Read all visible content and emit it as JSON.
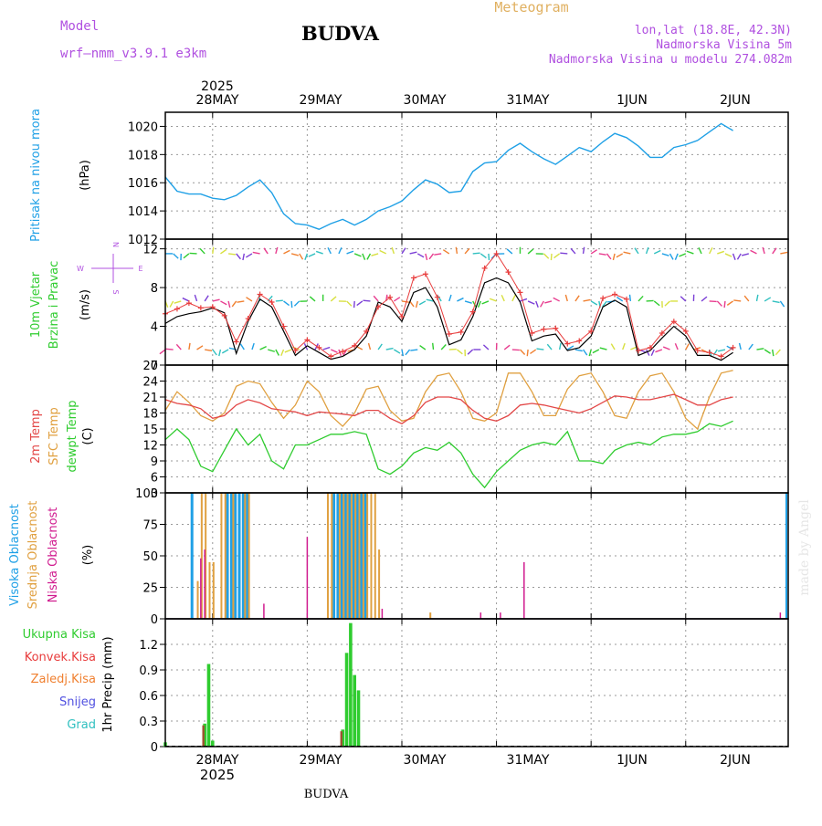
{
  "header": {
    "model_label": "Model",
    "model_name": "wrf—nmm_v3.9.1  e3km",
    "station_title": "BUDVA",
    "meteogram_label": "Meteogram",
    "coords_text": "lon,lat (18.8E, 42.3N)",
    "elevation_text": "Nadmorska Visina 5m",
    "model_elevation_text": "Nadmorska Visina u modelu 274.082m",
    "footer_title": "BUDVA",
    "watermark": "made by Angel"
  },
  "colors": {
    "pressure": "#1fa0e6",
    "wind_speed": "#e83c3c",
    "wind_line": "#000000",
    "temp_2m": "#e34848",
    "temp_sfc": "#e0a040",
    "dewpt": "#2fcc2f",
    "cloud_high": "#1fa0e6",
    "cloud_mid": "#e0a040",
    "cloud_low": "#d01b8f",
    "precip_total": "#2fcc2f",
    "precip_conv": "#e83c3c",
    "precip_frozen": "#f08030",
    "snow": "#5050e0",
    "grad": "#30c0c0",
    "model_label": "#b050e0",
    "meteogram_label": "#e0b060"
  },
  "chart_data": [
    {
      "id": "pressure",
      "type": "line",
      "y_label_main": "Pritisak na nivou mora",
      "y_label_unit": "(hPa)",
      "ylim": [
        1012,
        1021
      ],
      "yticks": [
        1012,
        1014,
        1016,
        1018,
        1020
      ],
      "x_top_labels": [
        "28MAY",
        "29MAY",
        "30MAY",
        "31MAY",
        "1JUN",
        "2JUN"
      ],
      "x_top_year": "2025",
      "x_hours": [
        0,
        3,
        6,
        9,
        12,
        15,
        18,
        21,
        24,
        27,
        30,
        33,
        36,
        39,
        42,
        45,
        48,
        51,
        54,
        57,
        60,
        63,
        66,
        69,
        72,
        75,
        78,
        81,
        84,
        87,
        90,
        93,
        96,
        99,
        102,
        105,
        108,
        111,
        114,
        117,
        120,
        123,
        126,
        129,
        132,
        135,
        138,
        141,
        144
      ],
      "series": [
        {
          "name": "MSLP",
          "values": [
            1016.4,
            1015.4,
            1015.2,
            1015.2,
            1014.9,
            1014.8,
            1015.1,
            1015.7,
            1016.2,
            1015.3,
            1013.8,
            1013.1,
            1013.0,
            1012.7,
            1013.1,
            1013.4,
            1013.0,
            1013.4,
            1014.0,
            1014.3,
            1014.7,
            1015.5,
            1016.2,
            1015.9,
            1015.3,
            1015.4,
            1016.8,
            1017.4,
            1017.5,
            1018.3,
            1018.8,
            1018.2,
            1017.7,
            1017.3,
            1017.9,
            1018.5,
            1018.2,
            1018.9,
            1019.5,
            1019.2,
            1018.6,
            1017.8,
            1017.8,
            1018.5,
            1018.7,
            1019.0,
            1019.6,
            1020.2,
            1019.7
          ]
        }
      ]
    },
    {
      "id": "wind",
      "type": "line",
      "y_label_main": "10m Vjetar",
      "y_label_sub": "Brzina i Pravac",
      "y_label_unit": "(m/s)",
      "compass": {
        "n": "N",
        "s": "S",
        "w": "W",
        "e": "E"
      },
      "ylim": [
        0,
        13
      ],
      "yticks": [
        0,
        4,
        8,
        12
      ],
      "series": [
        {
          "name": "wind speed (+)",
          "values": [
            5.3,
            5.8,
            6.4,
            5.9,
            6.0,
            5.1,
            2.4,
            4.8,
            7.3,
            6.5,
            4.0,
            1.5,
            2.6,
            1.8,
            0.9,
            1.4,
            2.0,
            3.5,
            6.0,
            7.0,
            5.0,
            9.0,
            9.4,
            7.0,
            3.2,
            3.4,
            5.5,
            10.0,
            11.5,
            9.6,
            7.5,
            3.3,
            3.7,
            3.8,
            2.2,
            2.5,
            3.5,
            6.9,
            7.3,
            6.8,
            1.5,
            1.8,
            3.3,
            4.5,
            3.5,
            1.5,
            1.3,
            0.9,
            1.8
          ]
        },
        {
          "name": "wind speed (line)",
          "values": [
            4.3,
            5.0,
            5.3,
            5.5,
            5.9,
            5.4,
            1.2,
            4.5,
            6.8,
            6.0,
            3.5,
            1.0,
            2.0,
            1.3,
            0.6,
            0.9,
            1.6,
            3.0,
            6.5,
            6.0,
            4.5,
            7.5,
            8.0,
            6.0,
            2.1,
            2.6,
            5.0,
            8.5,
            9.0,
            8.5,
            6.5,
            2.5,
            3.0,
            3.2,
            1.5,
            1.8,
            3.0,
            6.0,
            6.7,
            6.0,
            1.0,
            1.5,
            2.8,
            4.0,
            3.0,
            1.0,
            1.0,
            0.5,
            1.3
          ]
        }
      ]
    },
    {
      "id": "temperature",
      "type": "line",
      "y_label_main": "2m Temp",
      "y_label_sub": "SFC Temp",
      "y_label_third": "dewpt Temp",
      "y_label_unit": "(C)",
      "ylim": [
        3,
        27
      ],
      "yticks": [
        3,
        6,
        9,
        12,
        15,
        18,
        21,
        24,
        27
      ],
      "series": [
        {
          "name": "2m Temp",
          "values": [
            20.5,
            19.8,
            19.5,
            18.8,
            17.0,
            17.5,
            19.5,
            20.5,
            19.9,
            18.8,
            18.5,
            18.2,
            17.5,
            18.2,
            18.0,
            17.8,
            17.5,
            18.5,
            18.5,
            17.0,
            16.0,
            17.5,
            20.0,
            21.0,
            21.0,
            20.5,
            18.5,
            17.0,
            16.5,
            17.5,
            19.5,
            19.8,
            19.5,
            19.0,
            18.5,
            18.0,
            18.8,
            20.0,
            21.2,
            21.0,
            20.5,
            20.5,
            21.0,
            21.5,
            20.5,
            19.5,
            19.5,
            20.5,
            21.0
          ]
        },
        {
          "name": "SFC Temp",
          "values": [
            18.5,
            22.0,
            20.0,
            17.5,
            16.5,
            18.0,
            23.0,
            24.0,
            23.5,
            20.0,
            17.0,
            19.5,
            24.0,
            22.0,
            17.5,
            15.5,
            18.0,
            22.5,
            23.0,
            18.5,
            16.5,
            17.0,
            22.0,
            25.0,
            25.5,
            22.0,
            17.0,
            16.5,
            18.0,
            25.5,
            25.5,
            22.0,
            17.5,
            17.5,
            22.5,
            25.0,
            25.5,
            22.0,
            17.5,
            17.0,
            22.0,
            25.0,
            25.5,
            22.0,
            17.0,
            15.0,
            21.0,
            25.5,
            26.0
          ]
        },
        {
          "name": "dewpt Temp",
          "values": [
            13.0,
            15.0,
            13.0,
            8.0,
            7.0,
            11.0,
            15.0,
            12.0,
            14.0,
            9.0,
            7.5,
            12.0,
            12.0,
            13.0,
            14.0,
            14.0,
            14.5,
            14.0,
            7.5,
            6.5,
            8.0,
            10.5,
            11.5,
            11.0,
            12.5,
            10.5,
            6.5,
            4.0,
            7.0,
            9.0,
            11.0,
            12.0,
            12.5,
            12.0,
            14.5,
            9.0,
            9.0,
            8.5,
            11.0,
            12.0,
            12.5,
            12.0,
            13.5,
            14.0,
            14.0,
            14.5,
            16.0,
            15.5,
            16.5
          ]
        }
      ]
    },
    {
      "id": "clouds",
      "type": "bar",
      "y_label_main": "Visoka Oblacnost",
      "y_label_sub": "Srednja Oblacnost",
      "y_label_third": "Niska Oblacnost",
      "y_label_unit": "(%)",
      "ylim": [
        0,
        100
      ],
      "yticks": [
        0,
        25,
        50,
        75,
        100
      ],
      "series": [
        {
          "name": "Visoka Oblacnost",
          "points": [
            [
              7,
              100
            ],
            [
              16,
              100
            ],
            [
              17,
              100
            ],
            [
              18,
              100
            ],
            [
              19,
              100
            ],
            [
              20,
              100
            ],
            [
              21,
              100
            ],
            [
              43,
              100
            ],
            [
              44,
              100
            ],
            [
              45,
              100
            ],
            [
              46,
              100
            ],
            [
              47,
              100
            ],
            [
              48,
              100
            ],
            [
              49,
              100
            ],
            [
              50,
              100
            ],
            [
              51,
              100
            ]
          ]
        },
        {
          "name": "Srednja Oblacnost",
          "points": [
            [
              8,
              30
            ],
            [
              9,
              100
            ],
            [
              10,
              100
            ],
            [
              11,
              45
            ],
            [
              12,
              45
            ],
            [
              14,
              100
            ],
            [
              15,
              100
            ],
            [
              17,
              100
            ],
            [
              20,
              100
            ],
            [
              21,
              100
            ],
            [
              41,
              100
            ],
            [
              42,
              100
            ],
            [
              44,
              100
            ],
            [
              45,
              100
            ],
            [
              46,
              100
            ],
            [
              47,
              100
            ],
            [
              48,
              100
            ],
            [
              49,
              100
            ],
            [
              50,
              100
            ],
            [
              51,
              100
            ],
            [
              52,
              100
            ],
            [
              53,
              100
            ],
            [
              54,
              55
            ],
            [
              67,
              5
            ]
          ]
        },
        {
          "name": "Niska Oblacnost",
          "points": [
            [
              9,
              48
            ],
            [
              10,
              55
            ],
            [
              25,
              12
            ],
            [
              36,
              65
            ],
            [
              55,
              8
            ],
            [
              80,
              5
            ],
            [
              85,
              5
            ],
            [
              91,
              45
            ],
            [
              156,
              5
            ]
          ]
        }
      ]
    },
    {
      "id": "precip",
      "type": "bar",
      "y_label_unit": "1hr Precip (mm)",
      "ylim": [
        0,
        1.5
      ],
      "yticks": [
        0,
        0.3,
        0.6,
        0.9,
        1.2
      ],
      "x_bottom_labels": [
        "28MAY",
        "29MAY",
        "30MAY",
        "31MAY",
        "1JUN",
        "2JUN"
      ],
      "x_bottom_year": "2025",
      "legend": [
        "Ukupna Kisa",
        "Konvek.Kisa",
        "Zaledj.Kisa",
        "Snijeg",
        "Grad"
      ],
      "series": [
        {
          "name": "Ukupna Kisa",
          "points": [
            [
              0,
              0.05
            ],
            [
              10,
              0.27
            ],
            [
              11,
              0.97
            ],
            [
              12,
              0.07
            ],
            [
              45,
              0.2
            ],
            [
              46,
              1.1
            ],
            [
              47,
              1.45
            ],
            [
              48,
              0.84
            ],
            [
              49,
              0.66
            ]
          ]
        },
        {
          "name": "Konvek.Kisa",
          "points": [
            [
              10,
              0.25
            ],
            [
              45,
              0.18
            ]
          ]
        }
      ]
    }
  ]
}
